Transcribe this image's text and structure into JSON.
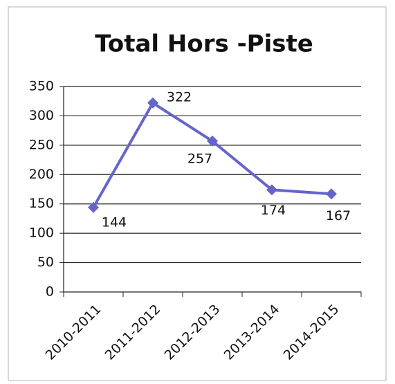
{
  "chart_data": {
    "type": "line",
    "title": "Total Hors -Piste",
    "categories": [
      "2010-2011",
      "2011-2012",
      "2012-2013",
      "2013-2014",
      "2014-2015"
    ],
    "series": [
      {
        "name": "Total Hors -Piste",
        "color": "#6565c9",
        "values": [
          144,
          322,
          257,
          174,
          167
        ]
      }
    ],
    "ylim": [
      0,
      350
    ],
    "yticks": [
      0,
      50,
      100,
      150,
      200,
      250,
      300,
      350
    ],
    "grid": true
  }
}
